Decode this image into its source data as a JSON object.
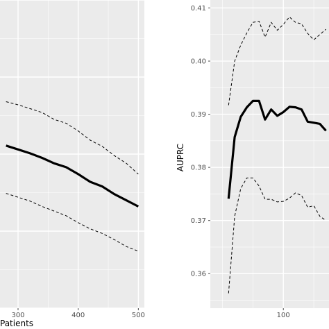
{
  "chart_data": [
    {
      "type": "line",
      "title": "",
      "xlabel": "Patients",
      "ylabel": "",
      "xlim": [
        270,
        510
      ],
      "ylim": [
        0,
        20
      ],
      "grid": true,
      "x_ticks": [
        300,
        400,
        500
      ],
      "x_tick_labels": [
        "300",
        "400",
        "500"
      ],
      "y_ticks": [],
      "series": [
        {
          "style": "solid",
          "x": [
            280,
            300,
            320,
            340,
            360,
            380,
            400,
            420,
            440,
            460,
            480,
            500
          ],
          "y": [
            10.55,
            10.3,
            10.05,
            9.75,
            9.4,
            9.15,
            8.7,
            8.2,
            7.9,
            7.4,
            7.0,
            6.6
          ]
        },
        {
          "style": "dashed",
          "x": [
            280,
            300,
            320,
            340,
            360,
            380,
            400,
            420,
            440,
            460,
            480,
            500
          ],
          "y": [
            13.4,
            13.2,
            12.95,
            12.7,
            12.25,
            12.0,
            11.5,
            10.9,
            10.5,
            9.9,
            9.4,
            8.7
          ]
        },
        {
          "style": "dashed",
          "x": [
            280,
            300,
            320,
            340,
            360,
            380,
            400,
            420,
            440,
            460,
            480,
            500
          ],
          "y": [
            7.45,
            7.2,
            6.95,
            6.6,
            6.3,
            6.0,
            5.55,
            5.15,
            4.85,
            4.45,
            4.0,
            3.7
          ]
        }
      ]
    },
    {
      "type": "line",
      "title": "",
      "xlabel": "",
      "ylabel": "AUPRC",
      "xlim": [
        -20,
        175
      ],
      "ylim": [
        0.3535,
        0.4115
      ],
      "grid": true,
      "x_ticks": [
        100
      ],
      "x_tick_labels": [
        "100"
      ],
      "y_ticks": [
        0.36,
        0.37,
        0.38,
        0.39,
        0.4,
        0.41
      ],
      "y_tick_labels": [
        "0.36",
        "0.37",
        "0.38",
        "0.39",
        "0.40",
        "0.41"
      ],
      "series": [
        {
          "style": "solid",
          "x": [
            10,
            20,
            30,
            40,
            50,
            60,
            70,
            80,
            90,
            100,
            110,
            120,
            130,
            140,
            150,
            160,
            170
          ],
          "y": [
            0.3741,
            0.3857,
            0.3895,
            0.3913,
            0.3925,
            0.3925,
            0.389,
            0.3909,
            0.3897,
            0.3904,
            0.3914,
            0.3913,
            0.3909,
            0.3886,
            0.3884,
            0.3882,
            0.3869
          ]
        },
        {
          "style": "dashed",
          "x": [
            10,
            20,
            30,
            40,
            50,
            60,
            70,
            80,
            90,
            100,
            110,
            120,
            130,
            140,
            150,
            160,
            170
          ],
          "y": [
            0.3917,
            0.4,
            0.403,
            0.4053,
            0.4073,
            0.4075,
            0.4045,
            0.4073,
            0.4058,
            0.4069,
            0.4083,
            0.4073,
            0.407,
            0.4052,
            0.404,
            0.405,
            0.406
          ]
        },
        {
          "style": "dashed",
          "x": [
            10,
            20,
            30,
            40,
            50,
            60,
            70,
            80,
            90,
            100,
            110,
            120,
            130,
            140,
            150,
            160,
            170
          ],
          "y": [
            0.3563,
            0.3708,
            0.376,
            0.378,
            0.378,
            0.3765,
            0.374,
            0.374,
            0.3735,
            0.3736,
            0.3742,
            0.3752,
            0.3747,
            0.3725,
            0.3728,
            0.3708,
            0.37
          ]
        }
      ]
    }
  ]
}
